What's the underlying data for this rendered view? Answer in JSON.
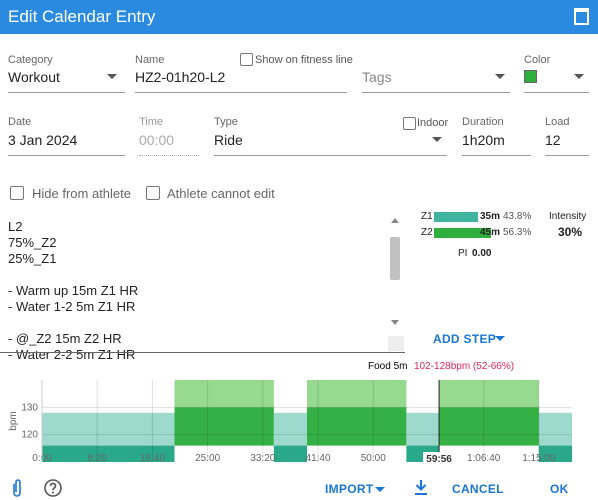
{
  "header": {
    "title": "Edit Calendar Entry"
  },
  "fields": {
    "category": {
      "label": "Category",
      "value": "Workout"
    },
    "name": {
      "label": "Name",
      "value": "HZ2-01h20-L2"
    },
    "show_fitness": "Show on fitness line",
    "tags": "Tags",
    "color": {
      "label": "Color",
      "value": "#2eae3c"
    },
    "date": {
      "label": "Date",
      "value": "3 Jan 2024"
    },
    "time": {
      "label": "Time",
      "value": "00:00"
    },
    "type": {
      "label": "Type",
      "value": "Ride"
    },
    "indoor": "Indoor",
    "duration": {
      "label": "Duration",
      "value": "1h20m"
    },
    "load": {
      "label": "Load",
      "value": 12
    }
  },
  "options": [
    "Hide from athlete",
    "Athlete cannot edit"
  ],
  "description": "L2\n75%_Z2\n25%_Z1\n\n- Warm up 15m Z1 HR\n- Water 1-2 5m Z1 HR\n\n- @_Z2 15m Z2 HR\n- Water 2-2 5m Z1 HR",
  "zones": [
    {
      "name": "Z1",
      "minutes": 35,
      "label": "35m",
      "percent": "43.8%",
      "color": "#3fb5a0"
    },
    {
      "name": "Z2",
      "minutes": 45,
      "label": "45m",
      "percent": "56.3%",
      "color": "#2eae3c"
    }
  ],
  "intensity": {
    "label": "Intensity",
    "value": "30%"
  },
  "pi": {
    "label": "PI",
    "value": "0.00"
  },
  "add_step": "ADD STEP",
  "chart": {
    "step_name": "Food 5m",
    "step_range": "102-128bpm (52-66%)",
    "y_label": "bpm",
    "ylim": [
      110,
      140
    ],
    "yticks": [
      120,
      130
    ],
    "xlim": [
      0,
      4800
    ],
    "xticks": [
      {
        "value": 0,
        "label": "0:00"
      },
      {
        "value": 500,
        "label": "8:20"
      },
      {
        "value": 1000,
        "label": "16:40"
      },
      {
        "value": 1500,
        "label": "25:00"
      },
      {
        "value": 2000,
        "label": "33:20"
      },
      {
        "value": 2500,
        "label": "41:40"
      },
      {
        "value": 3000,
        "label": "50:00"
      },
      {
        "value": 4000,
        "label": "1:06:40"
      },
      {
        "value": 4500,
        "label": "1:15:00"
      }
    ],
    "cursor": {
      "value": 3596,
      "label": "59:56"
    },
    "ranges": {
      "Z1": {
        "dark": [
          110,
          116
        ],
        "light": [
          116,
          128
        ],
        "dark_color": "#2aa88a",
        "light_color": "#9dd9cc"
      },
      "Z2": {
        "dark": [
          116,
          130
        ],
        "light": [
          130,
          140
        ],
        "dark_color": "#35b044",
        "light_color": "#96d98f"
      }
    },
    "steps": [
      {
        "seconds": 1200,
        "zone": "Z1"
      },
      {
        "seconds": 900,
        "zone": "Z2"
      },
      {
        "seconds": 300,
        "zone": "Z1"
      },
      {
        "seconds": 900,
        "zone": "Z2"
      },
      {
        "seconds": 300,
        "zone": "Z1"
      },
      {
        "seconds": 900,
        "zone": "Z2"
      },
      {
        "seconds": 300,
        "zone": "Z1"
      }
    ]
  },
  "toolbar": {
    "import": "IMPORT",
    "cancel": "CANCEL",
    "ok": "OK"
  }
}
